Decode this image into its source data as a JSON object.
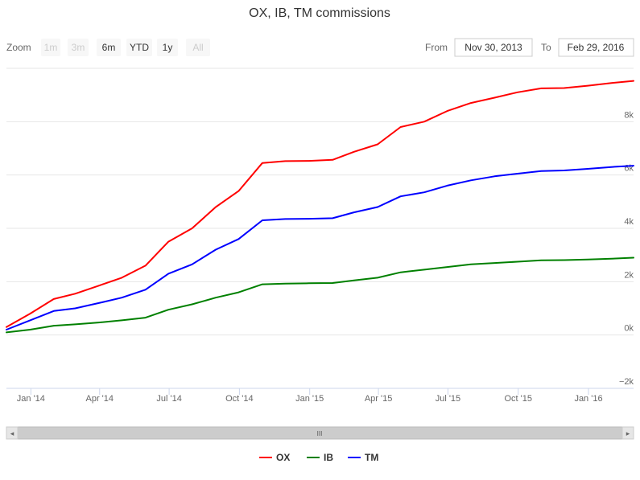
{
  "chart_data": {
    "type": "line",
    "title": "OX, IB, TM commissions",
    "x": [
      "2013-11-30",
      "2013-12-31",
      "2014-01-31",
      "2014-02-28",
      "2014-03-31",
      "2014-04-30",
      "2014-05-31",
      "2014-06-30",
      "2014-07-31",
      "2014-08-31",
      "2014-09-30",
      "2014-10-31",
      "2014-11-30",
      "2014-12-31",
      "2015-01-31",
      "2015-02-28",
      "2015-03-31",
      "2015-04-30",
      "2015-05-31",
      "2015-06-30",
      "2015-07-31",
      "2015-08-31",
      "2015-09-30",
      "2015-10-31",
      "2015-11-30",
      "2015-12-31",
      "2016-01-31",
      "2016-02-29"
    ],
    "series": [
      {
        "name": "OX",
        "color": "#ff0000",
        "values": [
          300,
          800,
          1350,
          1550,
          1850,
          2150,
          2600,
          3500,
          4000,
          4800,
          5400,
          6450,
          6520,
          6530,
          6570,
          6870,
          7150,
          7800,
          8000,
          8400,
          8700,
          8900,
          9100,
          9250,
          9260,
          9350,
          9450,
          9530
        ]
      },
      {
        "name": "IB",
        "color": "#008000",
        "values": [
          100,
          200,
          350,
          400,
          470,
          550,
          650,
          950,
          1150,
          1400,
          1600,
          1900,
          1930,
          1940,
          1950,
          2050,
          2150,
          2350,
          2450,
          2550,
          2650,
          2700,
          2750,
          2800,
          2810,
          2830,
          2860,
          2900
        ]
      },
      {
        "name": "TM",
        "color": "#0000ff",
        "values": [
          200,
          550,
          900,
          1000,
          1200,
          1400,
          1700,
          2300,
          2650,
          3200,
          3600,
          4300,
          4350,
          4360,
          4380,
          4600,
          4800,
          5200,
          5350,
          5600,
          5800,
          5950,
          6050,
          6150,
          6170,
          6230,
          6300,
          6350
        ]
      }
    ],
    "xlabel": "",
    "ylabel": "",
    "ylim": [
      -2000,
      10000
    ],
    "y_ticks": [
      -2000,
      0,
      2000,
      4000,
      6000,
      8000
    ],
    "y_tick_labels": [
      "−2k",
      "0k",
      "2k",
      "4k",
      "6k",
      "8k"
    ],
    "x_ticks": [
      "2014-01-01",
      "2014-04-01",
      "2014-07-01",
      "2014-10-01",
      "2015-01-01",
      "2015-04-01",
      "2015-07-01",
      "2015-10-01",
      "2016-01-01"
    ],
    "x_tick_labels": [
      "Jan '14",
      "Apr '14",
      "Jul '14",
      "Oct '14",
      "Jan '15",
      "Apr '15",
      "Jul '15",
      "Oct '15",
      "Jan '16"
    ],
    "x_range": [
      "2013-11-30",
      "2016-02-29"
    ],
    "grid": true,
    "legend_position": "bottom-center"
  },
  "range_selector": {
    "zoom_label": "Zoom",
    "buttons": [
      {
        "label": "1m",
        "enabled": false
      },
      {
        "label": "3m",
        "enabled": false
      },
      {
        "label": "6m",
        "enabled": true
      },
      {
        "label": "YTD",
        "enabled": true
      },
      {
        "label": "1y",
        "enabled": true
      },
      {
        "label": "All",
        "enabled": false
      }
    ],
    "from_label": "From",
    "from_value": "Nov 30, 2013",
    "to_label": "To",
    "to_value": "Feb 29, 2016"
  },
  "scrollbar": {
    "left_arrow": "◂",
    "right_arrow": "▸",
    "grip": "III"
  },
  "colors": {
    "grid": "#e6e6e6",
    "scrollbar_track": "#f2f2f2",
    "scrollbar_thumb": "#cccccc"
  }
}
